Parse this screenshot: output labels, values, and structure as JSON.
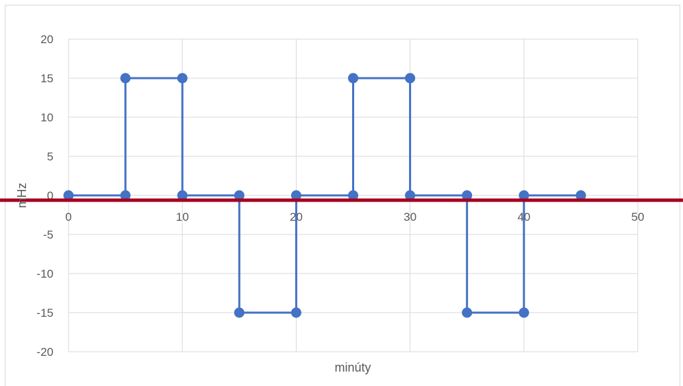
{
  "chart_data": {
    "type": "line",
    "title": "",
    "xlabel": "minúty",
    "ylabel": "mHz",
    "xlim": [
      0,
      50
    ],
    "ylim": [
      -20,
      20
    ],
    "x_ticks": [
      "0",
      "10",
      "20",
      "30",
      "40",
      "50"
    ],
    "y_ticks": [
      "20",
      "15",
      "10",
      "5",
      "0",
      "-5",
      "-10",
      "-15",
      "-20"
    ],
    "grid": true,
    "series": [
      {
        "color": "#4472c4",
        "points": [
          [
            0,
            0
          ],
          [
            5,
            0
          ],
          [
            5,
            15
          ],
          [
            10,
            15
          ],
          [
            10,
            0
          ],
          [
            15,
            0
          ],
          [
            15,
            -15
          ],
          [
            20,
            -15
          ],
          [
            20,
            0
          ],
          [
            25,
            0
          ],
          [
            25,
            15
          ],
          [
            30,
            15
          ],
          [
            30,
            0
          ],
          [
            35,
            0
          ],
          [
            35,
            -15
          ],
          [
            40,
            -15
          ],
          [
            40,
            0
          ],
          [
            45,
            0
          ]
        ]
      }
    ],
    "reference_line": {
      "y": 0,
      "color": "#a50021"
    },
    "gridline_color": "#d9d9d9"
  }
}
